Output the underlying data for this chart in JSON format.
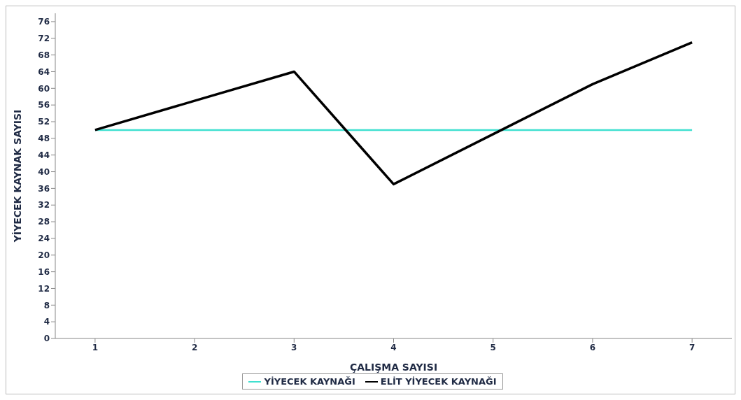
{
  "chart_data": {
    "type": "line",
    "xlabel": "ÇALIŞMA SAYISI",
    "ylabel": "YİYECEK KAYNAK SAYISI",
    "x": [
      1,
      2,
      3,
      4,
      5,
      6,
      7
    ],
    "series": [
      {
        "name": "YİYECEK KAYNAĞI",
        "color": "#40e0d0",
        "values": [
          50,
          50,
          50,
          50,
          50,
          50,
          50
        ]
      },
      {
        "name": "ELİT YİYECEK KAYNAĞI",
        "color": "#000000",
        "values": [
          50,
          57,
          64,
          37,
          49,
          61,
          71
        ]
      }
    ],
    "xlim": [
      0.6,
      7.4
    ],
    "xticks": [
      1,
      2,
      3,
      4,
      5,
      6,
      7
    ],
    "ylim": [
      0,
      78
    ],
    "yticks": [
      0,
      4,
      8,
      12,
      16,
      20,
      24,
      28,
      32,
      36,
      40,
      44,
      48,
      52,
      56,
      60,
      64,
      68,
      72,
      76
    ],
    "grid": false,
    "legend": "bottom",
    "marker": "none",
    "line_style": "solid"
  }
}
